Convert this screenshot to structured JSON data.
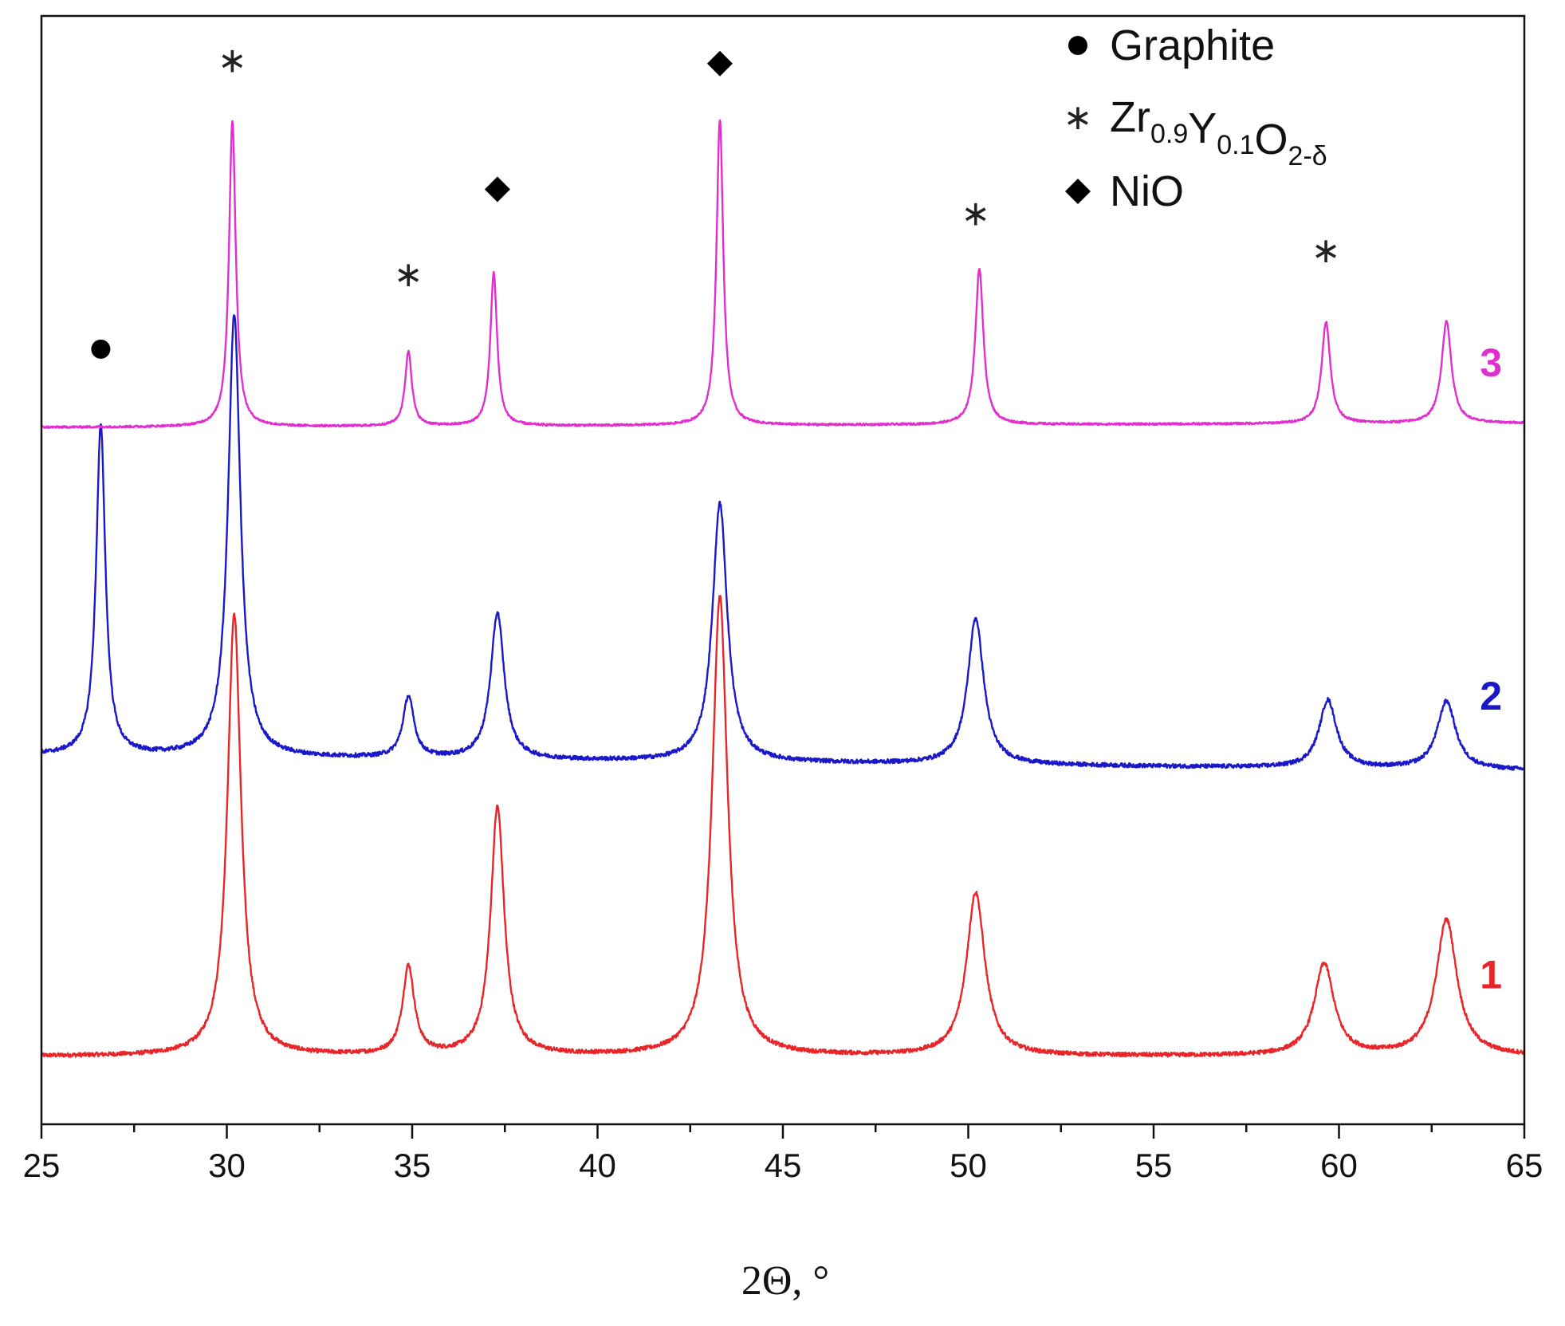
{
  "colors": {
    "series_1": "#e8262a",
    "series_2": "#1a18c8",
    "series_3": "#e12fcf",
    "axis": "#111111",
    "marker": "#000000"
  },
  "chart_data": {
    "type": "line",
    "title": "",
    "xlabel": "2Θ, °",
    "ylabel": "",
    "xlim": [
      25,
      65
    ],
    "x_ticks": [
      25,
      30,
      35,
      40,
      45,
      50,
      55,
      60,
      65
    ],
    "x_tick_labels": [
      "25",
      "30",
      "35",
      "40",
      "45",
      "50",
      "55",
      "60",
      "65"
    ],
    "y_visible": false,
    "grid": false,
    "legend_position": "top-right",
    "legend": [
      {
        "marker": "circle",
        "marker_icon": "circle-marker-icon",
        "text": "Graphite"
      },
      {
        "marker": "star",
        "marker_icon": "star-marker-icon",
        "text_parts": [
          {
            "t": "Zr",
            "sub": false
          },
          {
            "t": "0.9",
            "sub": true
          },
          {
            "t": "Y",
            "sub": false
          },
          {
            "t": "0.1",
            "sub": true
          },
          {
            "t": "O",
            "sub": false
          },
          {
            "t": "2-δ",
            "sub": true
          }
        ]
      },
      {
        "marker": "diamond",
        "marker_icon": "diamond-marker-icon",
        "text": "NiO"
      }
    ],
    "series": [
      {
        "name": "1",
        "color_key": "series_1",
        "baseline": 0.0,
        "noise": 0.006,
        "slope": 0.0,
        "peaks": [
          {
            "x": 30.2,
            "height": 1.3,
            "width": 0.22
          },
          {
            "x": 34.9,
            "height": 0.26,
            "width": 0.19
          },
          {
            "x": 37.3,
            "height": 0.73,
            "width": 0.22
          },
          {
            "x": 43.3,
            "height": 1.35,
            "width": 0.25
          },
          {
            "x": 50.2,
            "height": 0.48,
            "width": 0.3
          },
          {
            "x": 59.6,
            "height": 0.27,
            "width": 0.32
          },
          {
            "x": 62.9,
            "height": 0.4,
            "width": 0.34
          }
        ]
      },
      {
        "name": "2",
        "color_key": "series_2",
        "baseline": 0.885,
        "noise": 0.006,
        "slope": -0.0011,
        "peaks": [
          {
            "x": 26.6,
            "height": 0.97,
            "width": 0.15
          },
          {
            "x": 30.2,
            "height": 1.3,
            "width": 0.2
          },
          {
            "x": 34.9,
            "height": 0.18,
            "width": 0.18
          },
          {
            "x": 37.3,
            "height": 0.43,
            "width": 0.22
          },
          {
            "x": 43.3,
            "height": 0.76,
            "width": 0.24
          },
          {
            "x": 50.2,
            "height": 0.43,
            "width": 0.26
          },
          {
            "x": 59.7,
            "height": 0.2,
            "width": 0.28
          },
          {
            "x": 62.9,
            "height": 0.2,
            "width": 0.3
          }
        ]
      },
      {
        "name": "3",
        "color_key": "series_3",
        "baseline": 1.85,
        "noise": 0.003,
        "slope": 0.0003,
        "peaks": [
          {
            "x": 30.15,
            "height": 0.9,
            "width": 0.11
          },
          {
            "x": 34.9,
            "height": 0.22,
            "width": 0.11
          },
          {
            "x": 37.2,
            "height": 0.45,
            "width": 0.11
          },
          {
            "x": 43.3,
            "height": 0.9,
            "width": 0.11
          },
          {
            "x": 50.3,
            "height": 0.46,
            "width": 0.13
          },
          {
            "x": 59.65,
            "height": 0.3,
            "width": 0.14
          },
          {
            "x": 62.9,
            "height": 0.3,
            "width": 0.16
          }
        ]
      }
    ],
    "peak_markers": [
      {
        "x": 26.6,
        "y": 2.08,
        "type": "circle",
        "icon": "circle-marker-icon"
      },
      {
        "x": 30.15,
        "y": 2.93,
        "type": "star",
        "icon": "star-marker-icon"
      },
      {
        "x": 34.9,
        "y": 2.3,
        "type": "star",
        "icon": "star-marker-icon"
      },
      {
        "x": 37.3,
        "y": 2.55,
        "type": "diamond",
        "icon": "diamond-marker-icon"
      },
      {
        "x": 43.3,
        "y": 2.92,
        "type": "diamond",
        "icon": "diamond-marker-icon"
      },
      {
        "x": 50.2,
        "y": 2.48,
        "type": "star",
        "icon": "star-marker-icon"
      },
      {
        "x": 59.65,
        "y": 2.37,
        "type": "star",
        "icon": "star-marker-icon"
      }
    ],
    "series_labels": [
      {
        "text": "3",
        "x": 64.1,
        "y": 2.0,
        "color_key": "series_3"
      },
      {
        "text": "2",
        "x": 64.1,
        "y": 1.02,
        "color_key": "series_2"
      },
      {
        "text": "1",
        "x": 64.1,
        "y": 0.2,
        "color_key": "series_1"
      }
    ],
    "ylim": [
      -0.2,
      3.06
    ]
  }
}
